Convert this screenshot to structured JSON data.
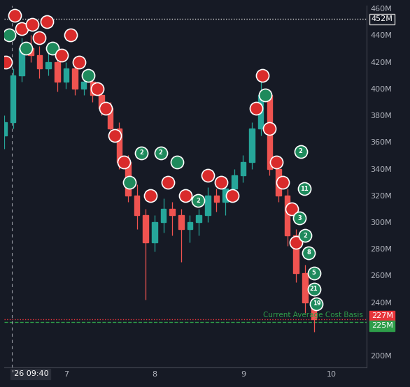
{
  "chart_data": {
    "type": "candlestick",
    "x": [
      6.3,
      6.4,
      6.5,
      6.6,
      6.7,
      6.8,
      6.9,
      7.0,
      7.1,
      7.2,
      7.3,
      7.4,
      7.5,
      7.6,
      7.7,
      7.8,
      7.9,
      8.0,
      8.1,
      8.2,
      8.3,
      8.4,
      8.5,
      8.6,
      8.7,
      8.8,
      8.9,
      9.0,
      9.1,
      9.2,
      9.3,
      9.4,
      9.5,
      9.6,
      9.7,
      9.8
    ],
    "open": [
      365,
      375,
      410,
      430,
      425,
      415,
      420,
      405,
      415,
      400,
      405,
      395,
      385,
      370,
      345,
      320,
      305,
      285,
      300,
      310,
      305,
      295,
      300,
      305,
      320,
      315,
      325,
      335,
      345,
      370,
      395,
      340,
      320,
      290,
      262,
      240
    ],
    "high": [
      380,
      415,
      438,
      440,
      432,
      428,
      425,
      420,
      420,
      412,
      410,
      400,
      390,
      375,
      350,
      328,
      310,
      305,
      318,
      315,
      310,
      305,
      310,
      326,
      325,
      330,
      340,
      350,
      375,
      405,
      398,
      345,
      325,
      295,
      268,
      244
    ],
    "low": [
      355,
      370,
      405,
      420,
      408,
      410,
      398,
      400,
      395,
      395,
      390,
      380,
      365,
      340,
      315,
      295,
      242,
      278,
      292,
      290,
      270,
      285,
      290,
      300,
      308,
      305,
      318,
      330,
      340,
      365,
      335,
      315,
      282,
      255,
      232,
      218
    ],
    "close": [
      375,
      410,
      430,
      425,
      415,
      420,
      405,
      415,
      400,
      405,
      395,
      385,
      370,
      345,
      320,
      305,
      285,
      300,
      310,
      305,
      295,
      300,
      305,
      320,
      315,
      325,
      335,
      345,
      370,
      395,
      340,
      320,
      290,
      262,
      240,
      227
    ],
    "up_color": "#26a69a",
    "down_color": "#ef5350",
    "xlim": [
      6.3,
      10.4
    ],
    "ylim": [
      191,
      462
    ],
    "xticks": [
      7,
      8,
      9,
      10
    ],
    "yticks": [
      {
        "value": 200,
        "label": "200M"
      },
      {
        "value": 240,
        "label": "240M"
      },
      {
        "value": 260,
        "label": "260M"
      },
      {
        "value": 280,
        "label": "280M"
      },
      {
        "value": 300,
        "label": "300M"
      },
      {
        "value": 320,
        "label": "320M"
      },
      {
        "value": 340,
        "label": "340M"
      },
      {
        "value": 360,
        "label": "360M"
      },
      {
        "value": 380,
        "label": "380M"
      },
      {
        "value": 400,
        "label": "400M"
      },
      {
        "value": 420,
        "label": "420M"
      },
      {
        "value": 440,
        "label": "440M"
      },
      {
        "value": 460,
        "label": "460M"
      }
    ],
    "grid": false,
    "reference_lines": [
      {
        "value": 452,
        "label": "452M",
        "color": "#cccccc",
        "line_style": "dotted"
      },
      {
        "value": 227,
        "label": "227M",
        "color": "#e8343a",
        "line_style": "dotted"
      },
      {
        "value": 225,
        "label": "225M",
        "color": "#2e9e4a",
        "line_style": "dashed",
        "annotation": "Current Average Cost Basis"
      }
    ],
    "crosshair": {
      "x": 6.39,
      "label": "'26 09:40"
    },
    "trade_colors": {
      "buy": "#1e8a5c",
      "sell": "#d92b2b"
    },
    "trades": [
      {
        "x": 6.32,
        "y": 420,
        "side": "sell"
      },
      {
        "x": 6.36,
        "y": 440,
        "side": "buy"
      },
      {
        "x": 6.42,
        "y": 455,
        "side": "sell"
      },
      {
        "x": 6.5,
        "y": 445,
        "side": "sell"
      },
      {
        "x": 6.55,
        "y": 430,
        "side": "buy"
      },
      {
        "x": 6.62,
        "y": 448,
        "side": "sell"
      },
      {
        "x": 6.7,
        "y": 438,
        "side": "sell"
      },
      {
        "x": 6.78,
        "y": 450,
        "side": "sell"
      },
      {
        "x": 6.85,
        "y": 430,
        "side": "buy"
      },
      {
        "x": 6.95,
        "y": 425,
        "side": "sell"
      },
      {
        "x": 7.05,
        "y": 440,
        "side": "sell"
      },
      {
        "x": 7.15,
        "y": 420,
        "side": "sell"
      },
      {
        "x": 7.25,
        "y": 410,
        "side": "buy"
      },
      {
        "x": 7.35,
        "y": 400,
        "side": "sell"
      },
      {
        "x": 7.45,
        "y": 385,
        "side": "sell"
      },
      {
        "x": 7.55,
        "y": 365,
        "side": "sell"
      },
      {
        "x": 7.65,
        "y": 345,
        "side": "sell"
      },
      {
        "x": 7.72,
        "y": 330,
        "side": "buy"
      },
      {
        "x": 7.85,
        "y": 352,
        "side": "buy",
        "label": "2"
      },
      {
        "x": 7.95,
        "y": 320,
        "side": "sell"
      },
      {
        "x": 8.07,
        "y": 352,
        "side": "buy",
        "label": "2"
      },
      {
        "x": 8.15,
        "y": 330,
        "side": "sell"
      },
      {
        "x": 8.25,
        "y": 345,
        "side": "buy"
      },
      {
        "x": 8.35,
        "y": 320,
        "side": "sell"
      },
      {
        "x": 8.49,
        "y": 316,
        "side": "buy",
        "label": "2"
      },
      {
        "x": 8.6,
        "y": 335,
        "side": "sell"
      },
      {
        "x": 8.75,
        "y": 330,
        "side": "sell"
      },
      {
        "x": 8.88,
        "y": 320,
        "side": "sell"
      },
      {
        "x": 9.15,
        "y": 385,
        "side": "sell"
      },
      {
        "x": 9.22,
        "y": 410,
        "side": "sell"
      },
      {
        "x": 9.25,
        "y": 395,
        "side": "buy"
      },
      {
        "x": 9.3,
        "y": 370,
        "side": "sell"
      },
      {
        "x": 9.38,
        "y": 345,
        "side": "sell"
      },
      {
        "x": 9.45,
        "y": 330,
        "side": "sell"
      },
      {
        "x": 9.55,
        "y": 310,
        "side": "sell"
      },
      {
        "x": 9.6,
        "y": 285,
        "side": "sell"
      },
      {
        "x": 9.65,
        "y": 353,
        "side": "buy",
        "label": "2"
      },
      {
        "x": 9.69,
        "y": 325,
        "side": "buy",
        "label": "11"
      },
      {
        "x": 9.64,
        "y": 303,
        "side": "buy",
        "label": "3"
      },
      {
        "x": 9.7,
        "y": 290,
        "side": "buy",
        "label": "2"
      },
      {
        "x": 9.74,
        "y": 277,
        "side": "buy",
        "label": "8"
      },
      {
        "x": 9.8,
        "y": 262,
        "side": "buy",
        "label": "5"
      },
      {
        "x": 9.8,
        "y": 250,
        "side": "buy",
        "label": "21"
      },
      {
        "x": 9.83,
        "y": 239,
        "side": "buy",
        "label": "19"
      }
    ]
  }
}
